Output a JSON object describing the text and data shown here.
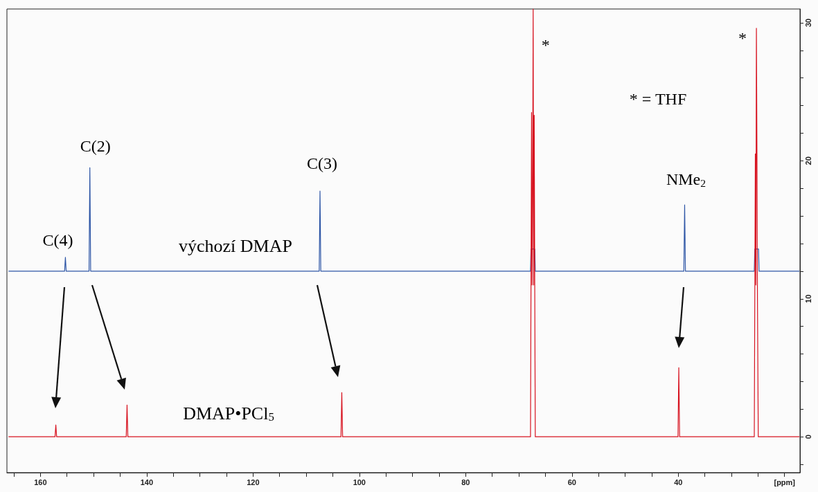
{
  "chart_data": {
    "type": "line",
    "xlim": [
      166.3,
      17.1
    ],
    "xticks": [
      {
        "value": 165,
        "label": null
      },
      160,
      {
        "value": 155,
        "label": null
      },
      {
        "value": 150,
        "label": null
      },
      {
        "value": 145,
        "label": null
      },
      140,
      {
        "value": 135,
        "label": null
      },
      {
        "value": 130,
        "label": null
      },
      {
        "value": 125,
        "label": null
      },
      120,
      {
        "value": 115,
        "label": null
      },
      {
        "value": 110,
        "label": null
      },
      {
        "value": 105,
        "label": null
      },
      100,
      {
        "value": 95,
        "label": null
      },
      {
        "value": 90,
        "label": null
      },
      {
        "value": 85,
        "label": null
      },
      80,
      {
        "value": 75,
        "label": null
      },
      {
        "value": 70,
        "label": null
      },
      {
        "value": 65,
        "label": null
      },
      60,
      {
        "value": 55,
        "label": null
      },
      {
        "value": 50,
        "label": null
      },
      {
        "value": 45,
        "label": null
      },
      40,
      {
        "value": 35,
        "label": null
      },
      {
        "value": 30,
        "label": null
      },
      {
        "value": 25,
        "label": null
      },
      {
        "value": 20,
        "label": "[ppm]"
      }
    ],
    "ylim": [
      -2.6,
      31
    ],
    "yticks": [
      {
        "value": -2,
        "label": null
      },
      0,
      {
        "value": 2,
        "label": null
      },
      {
        "value": 4,
        "label": null
      },
      {
        "value": 6,
        "label": null
      },
      {
        "value": 8,
        "label": null
      },
      10,
      {
        "value": 12,
        "label": null
      },
      {
        "value": 14,
        "label": null
      },
      {
        "value": 16,
        "label": null
      },
      {
        "value": 18,
        "label": null
      },
      20,
      {
        "value": 22,
        "label": null
      },
      {
        "value": 24,
        "label": null
      },
      {
        "value": 26,
        "label": null
      },
      {
        "value": 28,
        "label": null
      },
      30
    ],
    "grid": false,
    "legend": false,
    "marker": "none",
    "line_style": "solid",
    "series": [
      {
        "name": "výchozí DMAP",
        "color": "#2e56a6",
        "x": [
          166,
          155.45,
          155.3,
          155.15,
          150.85,
          150.7,
          150.55,
          107.55,
          107.4,
          107.25,
          67.8,
          67.7,
          67.0,
          66.9,
          38.95,
          38.8,
          38.65,
          25.7,
          25.6,
          24.9,
          24.8,
          17.2
        ],
        "values": [
          12,
          12,
          13.0,
          12,
          12,
          19.5,
          12,
          12,
          17.8,
          12,
          12,
          13.6,
          13.6,
          12,
          12,
          16.8,
          12,
          12,
          13.6,
          13.6,
          12,
          12
        ]
      },
      {
        "name": "DMAP•PCl$_{5}$",
        "color": "#d7121f",
        "x": [
          166,
          157.25,
          157.1,
          156.95,
          143.85,
          143.7,
          143.55,
          103.45,
          103.3,
          103.15,
          67.8,
          67.6,
          67.5,
          67.4,
          67.3,
          67.2,
          67.1,
          67.0,
          66.9,
          40.05,
          39.9,
          39.75,
          25.7,
          25.5,
          25.4,
          25.3,
          25.2,
          25.1,
          24.95,
          17.2
        ],
        "values": [
          0,
          0,
          0.85,
          0,
          0,
          2.3,
          0,
          0,
          3.2,
          0,
          0,
          23.5,
          11,
          17.7,
          31,
          11,
          23.3,
          11,
          0,
          0,
          5.0,
          0,
          0,
          20.5,
          11,
          29.6,
          20.8,
          10,
          0,
          0
        ]
      }
    ],
    "annotations": [
      {
        "text": "C(4)",
        "x": 155.3,
        "y": 13.0
      },
      {
        "text": "C(2)",
        "x": 150.7,
        "y": 19.5
      },
      {
        "text": "C(3)",
        "x": 107.4,
        "y": 17.8
      },
      {
        "text": "NMe$_{2}$",
        "x": 38.8,
        "y": 16.8
      },
      {
        "text": "*",
        "x": 67.3,
        "y": 31
      },
      {
        "text": "*",
        "x": 25.3,
        "y": 29.6
      },
      "* = THF"
    ]
  }
}
